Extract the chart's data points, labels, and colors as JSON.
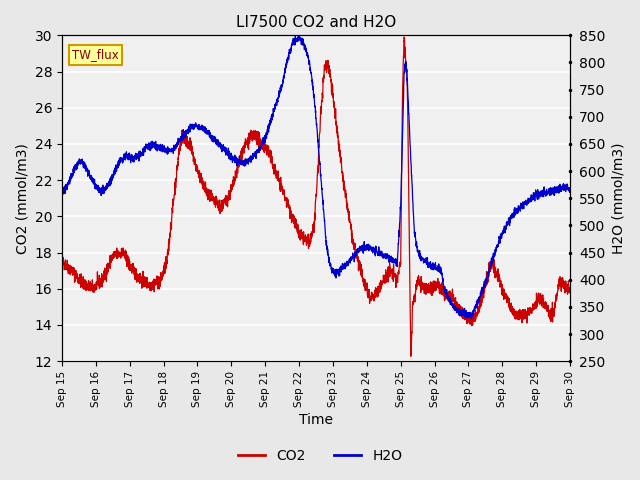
{
  "title": "LI7500 CO2 and H2O",
  "xlabel": "Time",
  "ylabel_left": "CO2 (mmol/m3)",
  "ylabel_right": "H2O (mmol/m3)",
  "annotation": "TW_flux",
  "ylim_left": [
    12,
    30
  ],
  "ylim_right": [
    250,
    850
  ],
  "yticks_left": [
    12,
    14,
    16,
    18,
    20,
    22,
    24,
    26,
    28,
    30
  ],
  "yticks_right": [
    250,
    300,
    350,
    400,
    450,
    500,
    550,
    600,
    650,
    700,
    750,
    800,
    850
  ],
  "xtick_labels": [
    "Sep 15",
    "Sep 16",
    "Sep 17",
    "Sep 18",
    "Sep 19",
    "Sep 20",
    "Sep 21",
    "Sep 22",
    "Sep 23",
    "Sep 24",
    "Sep 25",
    "Sep 26",
    "Sep 27",
    "Sep 28",
    "Sep 29",
    "Sep 30"
  ],
  "color_co2": "#cc0000",
  "color_h2o": "#0000cc",
  "bg_color": "#e8e8e8",
  "plot_bg_color": "#f0f0f0",
  "grid_color": "#ffffff",
  "annotation_bg": "#ffff99",
  "annotation_border": "#cc9900",
  "legend_co2": "CO2",
  "legend_h2o": "H2O",
  "co2_kp_x": [
    0,
    0.3,
    0.6,
    0.9,
    1.2,
    1.5,
    1.8,
    2.0,
    2.3,
    2.6,
    2.9,
    3.1,
    3.3,
    3.45,
    3.55,
    3.65,
    3.75,
    3.85,
    3.95,
    4.1,
    4.3,
    4.5,
    4.7,
    4.9,
    5.1,
    5.3,
    5.5,
    5.7,
    5.9,
    6.1,
    6.3,
    6.5,
    6.7,
    7.0,
    7.3,
    7.45,
    7.55,
    7.65,
    7.75,
    7.85,
    7.95,
    8.1,
    8.3,
    8.6,
    8.9,
    9.1,
    9.3,
    9.5,
    9.7,
    9.9,
    10.0,
    10.05,
    10.1,
    10.2,
    10.3,
    10.35,
    10.5,
    10.7,
    10.9,
    11.1,
    11.3,
    11.5,
    11.7,
    11.9,
    12.1,
    12.3,
    12.5,
    12.7,
    12.9,
    13.1,
    13.3,
    13.5,
    13.7,
    13.9,
    14.1,
    14.3,
    14.5,
    14.7,
    14.9,
    15.0
  ],
  "co2_kp_y": [
    17.5,
    17.0,
    16.3,
    16.0,
    16.5,
    17.8,
    18.0,
    17.3,
    16.5,
    16.2,
    16.4,
    17.5,
    21.0,
    23.5,
    24.5,
    24.2,
    24.0,
    23.5,
    22.8,
    22.0,
    21.2,
    20.8,
    20.5,
    21.0,
    22.0,
    23.5,
    24.2,
    24.5,
    24.0,
    23.5,
    22.5,
    21.5,
    20.5,
    19.0,
    18.5,
    19.5,
    22.5,
    26.0,
    28.2,
    28.5,
    27.5,
    25.0,
    22.0,
    18.5,
    16.5,
    15.5,
    15.8,
    16.5,
    17.0,
    16.5,
    17.5,
    26.8,
    30.0,
    27.0,
    12.0,
    15.0,
    16.5,
    16.0,
    16.0,
    16.2,
    15.8,
    15.5,
    15.0,
    14.5,
    14.2,
    14.8,
    16.2,
    17.5,
    16.5,
    15.5,
    14.8,
    14.5,
    14.5,
    15.0,
    15.5,
    15.0,
    14.5,
    16.5,
    16.0,
    16.0
  ],
  "h2o_kp_x": [
    0,
    0.2,
    0.4,
    0.55,
    0.7,
    0.85,
    1.0,
    1.15,
    1.3,
    1.5,
    1.7,
    1.9,
    2.1,
    2.3,
    2.5,
    2.7,
    2.9,
    3.1,
    3.3,
    3.5,
    3.7,
    3.9,
    4.1,
    4.3,
    4.5,
    4.7,
    4.9,
    5.1,
    5.3,
    5.5,
    5.7,
    5.9,
    6.1,
    6.3,
    6.5,
    6.6,
    6.7,
    6.8,
    6.9,
    7.0,
    7.1,
    7.2,
    7.3,
    7.4,
    7.5,
    7.6,
    7.7,
    7.8,
    7.9,
    8.0,
    8.1,
    8.2,
    8.4,
    8.6,
    8.8,
    9.0,
    9.2,
    9.4,
    9.5,
    9.6,
    9.7,
    9.8,
    9.9,
    10.0,
    10.1,
    10.15,
    10.2,
    10.3,
    10.4,
    10.5,
    10.6,
    10.7,
    10.8,
    10.9,
    11.0,
    11.1,
    11.2,
    11.3,
    11.5,
    11.7,
    11.9,
    12.1,
    12.3,
    12.5,
    12.7,
    12.9,
    13.1,
    13.3,
    13.5,
    13.7,
    13.9,
    14.1,
    14.3,
    14.5,
    14.7,
    14.9,
    15.0
  ],
  "h2o_kp_y": [
    560,
    580,
    608,
    620,
    608,
    590,
    572,
    562,
    568,
    590,
    618,
    628,
    622,
    630,
    645,
    648,
    642,
    638,
    640,
    658,
    675,
    685,
    682,
    672,
    658,
    645,
    632,
    622,
    615,
    618,
    630,
    648,
    680,
    720,
    760,
    790,
    815,
    835,
    842,
    845,
    840,
    825,
    800,
    760,
    700,
    620,
    545,
    468,
    430,
    415,
    413,
    418,
    428,
    442,
    458,
    462,
    455,
    448,
    445,
    442,
    438,
    435,
    432,
    535,
    780,
    800,
    760,
    620,
    490,
    452,
    440,
    435,
    430,
    426,
    424,
    420,
    415,
    380,
    355,
    342,
    338,
    335,
    362,
    395,
    435,
    472,
    498,
    518,
    532,
    542,
    552,
    558,
    562,
    565,
    568,
    570,
    565
  ]
}
